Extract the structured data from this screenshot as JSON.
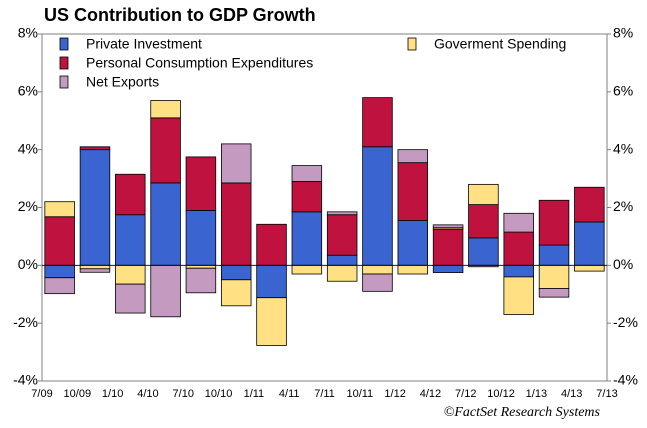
{
  "chart_data": {
    "type": "bar",
    "stacked": true,
    "title": "US Contribution to GDP Growth",
    "credit": "©FactSet Research Systems",
    "x_tick_labels": [
      "7/09",
      "10/09",
      "1/10",
      "4/10",
      "7/10",
      "10/10",
      "1/11",
      "4/11",
      "7/11",
      "10/11",
      "1/12",
      "4/12",
      "7/12",
      "10/12",
      "1/13",
      "4/13",
      "7/13"
    ],
    "series": [
      {
        "name": "Private Investment",
        "color": "#3a64d0",
        "values": [
          -0.43,
          4.0,
          1.75,
          2.85,
          1.9,
          -0.5,
          -1.12,
          1.85,
          0.35,
          4.1,
          1.55,
          -0.25,
          0.95,
          -0.4,
          0.7,
          1.5
        ]
      },
      {
        "name": "Personal Consumption Expenditures",
        "color": "#c0123e",
        "values": [
          1.68,
          0.1,
          1.4,
          2.25,
          1.85,
          2.85,
          1.42,
          1.05,
          1.4,
          1.7,
          2.0,
          1.25,
          1.15,
          1.15,
          1.55,
          1.2
        ]
      },
      {
        "name": "Goverment Spending",
        "color": "#ffe083",
        "values": [
          0.52,
          -0.12,
          -0.65,
          0.6,
          -0.1,
          -0.9,
          -1.65,
          -0.3,
          -0.55,
          -0.3,
          -0.3,
          0.05,
          0.7,
          -1.3,
          -0.8,
          -0.2
        ]
      },
      {
        "name": "Net Exports",
        "color": "#c49ac0",
        "values": [
          -0.55,
          -0.12,
          -1.0,
          -1.78,
          -0.85,
          1.35,
          0,
          0.55,
          0.1,
          -0.6,
          0.45,
          0.1,
          -0.05,
          0.65,
          -0.3,
          0
        ]
      }
    ],
    "ylim": [
      -4,
      8
    ],
    "yticks": [
      {
        "value": -4,
        "label": "-4%"
      },
      {
        "value": -2,
        "label": "-2%"
      },
      {
        "value": 0,
        "label": "0%"
      },
      {
        "value": 2,
        "label": "2%"
      },
      {
        "value": 4,
        "label": "4%"
      },
      {
        "value": 6,
        "label": "6%"
      },
      {
        "value": 8,
        "label": "8%"
      }
    ],
    "right_axis": true
  }
}
